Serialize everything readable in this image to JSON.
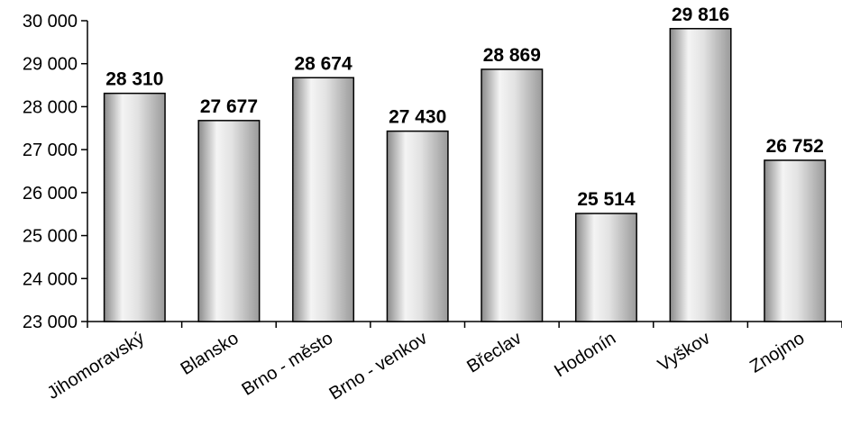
{
  "chart_data": {
    "type": "bar",
    "title": "",
    "xlabel": "",
    "ylabel": "",
    "categories": [
      "Jihomoravský",
      "Blansko",
      "Brno - město",
      "Brno - venkov",
      "Břeclav",
      "Hodonín",
      "Vyškov",
      "Znojmo"
    ],
    "values": [
      28310,
      27677,
      28674,
      27430,
      28869,
      25514,
      29816,
      26752
    ],
    "value_labels": [
      "28 310",
      "27 677",
      "28 674",
      "27 430",
      "28 869",
      "25 514",
      "29 816",
      "26 752"
    ],
    "ylim": [
      23000,
      30000
    ],
    "yticks": [
      23000,
      24000,
      25000,
      26000,
      27000,
      28000,
      29000,
      30000
    ],
    "ytick_labels": [
      "23 000",
      "24 000",
      "25 000",
      "26 000",
      "27 000",
      "28 000",
      "29 000",
      "30 000"
    ],
    "grid": false,
    "legend": "none",
    "colors": {
      "bar_light": "#f4f4f4",
      "bar_mid": "#cfcfcf",
      "bar_dark": "#8a8a8a",
      "bar_edge": "#000000",
      "axis": "#000000"
    }
  }
}
